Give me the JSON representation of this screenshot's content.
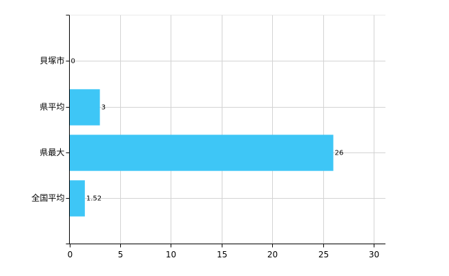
{
  "chart_data": {
    "type": "bar",
    "orientation": "horizontal",
    "categories": [
      "貝塚市",
      "県平均",
      "県最大",
      "全国平均"
    ],
    "values": [
      0,
      3,
      26,
      1.52
    ],
    "color": "#3ec6f6",
    "xlim": [
      0,
      31
    ],
    "xticks": [
      0,
      5,
      10,
      15,
      20,
      25,
      30
    ],
    "grid": true
  }
}
